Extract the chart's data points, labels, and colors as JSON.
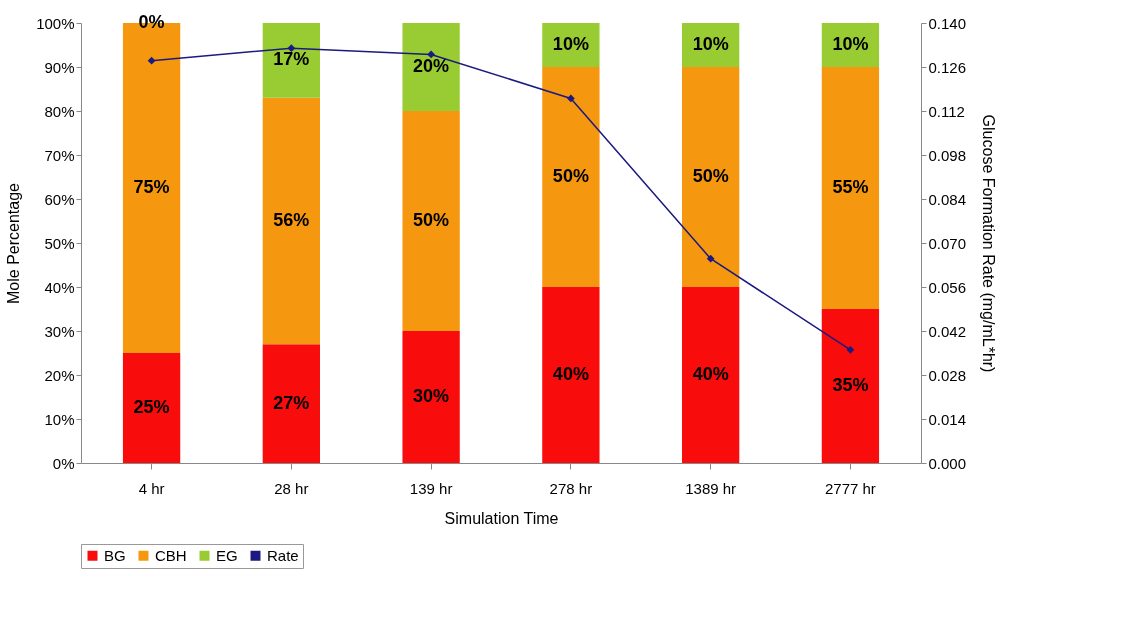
{
  "chart_data": {
    "type": "bar",
    "stacked": true,
    "xlabel": "Simulation Time",
    "ylabel": "Mole Percentage",
    "y2label": "Glucose Formation Rate (mg/mL*hr)",
    "categories": [
      "4 hr",
      "28 hr",
      "139 hr",
      "278 hr",
      "1389 hr",
      "2777 hr"
    ],
    "series": [
      {
        "name": "BG",
        "color": "#f80c0c",
        "values": [
          25,
          27,
          30,
          40,
          40,
          35
        ],
        "value_labels": [
          "25%",
          "27%",
          "30%",
          "40%",
          "40%",
          "35%"
        ]
      },
      {
        "name": "CBH",
        "color": "#f5980f",
        "values": [
          75,
          56,
          50,
          50,
          50,
          55
        ],
        "value_labels": [
          "75%",
          "56%",
          "50%",
          "50%",
          "50%",
          "55%"
        ]
      },
      {
        "name": "EG",
        "color": "#99cc33",
        "values": [
          0,
          17,
          20,
          10,
          10,
          10
        ],
        "value_labels": [
          "0%",
          "17%",
          "20%",
          "10%",
          "10%",
          "10%"
        ]
      },
      {
        "name": "Rate",
        "type": "line",
        "axis": "y2",
        "color": "#1a1a80",
        "marker": "diamond",
        "values": [
          0.128,
          0.132,
          0.13,
          0.116,
          0.065,
          0.036
        ]
      }
    ],
    "ylim": [
      0,
      100
    ],
    "yticks": [
      {
        "value": 0,
        "label": "0%"
      },
      {
        "value": 10,
        "label": "10%"
      },
      {
        "value": 20,
        "label": "20%"
      },
      {
        "value": 30,
        "label": "30%"
      },
      {
        "value": 40,
        "label": "40%"
      },
      {
        "value": 50,
        "label": "50%"
      },
      {
        "value": 60,
        "label": "60%"
      },
      {
        "value": 70,
        "label": "70%"
      },
      {
        "value": 80,
        "label": "80%"
      },
      {
        "value": 90,
        "label": "90%"
      },
      {
        "value": 100,
        "label": "100%"
      }
    ],
    "y2lim": [
      0,
      0.14
    ],
    "y2ticks": [
      {
        "value": 0,
        "label": "0.000"
      },
      {
        "value": 0.014,
        "label": "0.014"
      },
      {
        "value": 0.028,
        "label": "0.028"
      },
      {
        "value": 0.042,
        "label": "0.042"
      },
      {
        "value": 0.056,
        "label": "0.056"
      },
      {
        "value": 0.07,
        "label": "0.070"
      },
      {
        "value": 0.084,
        "label": "0.084"
      },
      {
        "value": 0.098,
        "label": "0.098"
      },
      {
        "value": 0.112,
        "label": "0.112"
      },
      {
        "value": 0.126,
        "label": "0.126"
      },
      {
        "value": 0.14,
        "label": "0.140"
      }
    ],
    "grid": false,
    "legend": "bottom"
  }
}
